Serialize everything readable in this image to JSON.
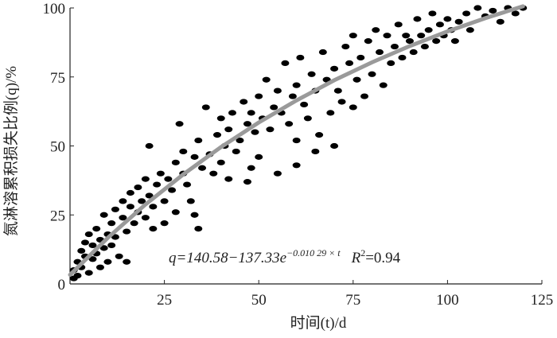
{
  "chart_data": {
    "type": "scatter",
    "xlabel": "时间(t)/d",
    "ylabel": "氮淋溶累积损失比例(q)/%",
    "xlim": [
      0,
      125
    ],
    "xticks": [
      25,
      50,
      75,
      100,
      125
    ],
    "ylim": [
      0,
      100
    ],
    "yticks": [
      0,
      25,
      50,
      75,
      100
    ],
    "annotation": {
      "formula": "q=140.58−137.33e",
      "exponent": "−0.010 29 × t",
      "r2": "R",
      "r2_sup": "2",
      "r2_value": "=0.94"
    },
    "series": [
      {
        "type": "scatter",
        "color": "#000000",
        "x": [
          1,
          1,
          2,
          2,
          3,
          3,
          4,
          4,
          5,
          5,
          6,
          6,
          7,
          7,
          8,
          8,
          9,
          9,
          10,
          10,
          11,
          11,
          12,
          12,
          13,
          14,
          14,
          15,
          16,
          16,
          17,
          18,
          18,
          19,
          20,
          20,
          21,
          21,
          22,
          23,
          24,
          25,
          25,
          26,
          27,
          28,
          28,
          29,
          30,
          30,
          31,
          32,
          33,
          34,
          34,
          35,
          36,
          37,
          38,
          39,
          40,
          40,
          41,
          42,
          42,
          43,
          44,
          45,
          46,
          47,
          48,
          48,
          49,
          50,
          50,
          51,
          52,
          53,
          54,
          55,
          55,
          56,
          57,
          58,
          59,
          60,
          60,
          61,
          62,
          63,
          64,
          65,
          66,
          67,
          68,
          69,
          70,
          71,
          72,
          73,
          74,
          75,
          75,
          76,
          77,
          78,
          79,
          80,
          81,
          82,
          83,
          84,
          85,
          86,
          87,
          88,
          89,
          90,
          91,
          92,
          93,
          94,
          95,
          96,
          97,
          98,
          99,
          100,
          101,
          102,
          103,
          105,
          106,
          108,
          110,
          112,
          114,
          116,
          118,
          120,
          60,
          47,
          33,
          22,
          15,
          70,
          65
        ],
        "values": [
          2,
          5,
          8,
          3,
          12,
          6,
          10,
          15,
          4,
          18,
          9,
          14,
          20,
          11,
          16,
          6,
          25,
          13,
          18,
          8,
          22,
          14,
          27,
          17,
          10,
          24,
          30,
          19,
          28,
          33,
          22,
          35,
          26,
          30,
          38,
          24,
          32,
          50,
          28,
          36,
          40,
          30,
          22,
          38,
          34,
          44,
          26,
          58,
          40,
          48,
          36,
          30,
          46,
          20,
          52,
          42,
          64,
          47,
          40,
          54,
          44,
          60,
          50,
          38,
          56,
          62,
          48,
          52,
          66,
          58,
          42,
          62,
          55,
          68,
          46,
          60,
          74,
          56,
          64,
          40,
          70,
          62,
          80,
          58,
          68,
          72,
          52,
          82,
          65,
          60,
          76,
          70,
          54,
          84,
          74,
          62,
          78,
          70,
          66,
          86,
          80,
          90,
          64,
          74,
          82,
          68,
          88,
          76,
          92,
          84,
          72,
          90,
          80,
          86,
          94,
          82,
          90,
          88,
          84,
          96,
          90,
          86,
          92,
          98,
          88,
          94,
          90,
          96,
          92,
          88,
          95,
          98,
          92,
          100,
          97,
          99,
          95,
          100,
          98,
          100,
          43,
          37,
          25,
          20,
          8,
          50,
          48
        ]
      },
      {
        "type": "line",
        "color": "#9a9a9a",
        "x": [
          0,
          10,
          20,
          30,
          40,
          50,
          60,
          70,
          80,
          90,
          100,
          110,
          120
        ],
        "values": [
          3.3,
          16.7,
          28.8,
          39.7,
          49.6,
          58.5,
          66.5,
          73.8,
          80.3,
          86.2,
          91.5,
          96.3,
          100.6
        ]
      }
    ]
  }
}
